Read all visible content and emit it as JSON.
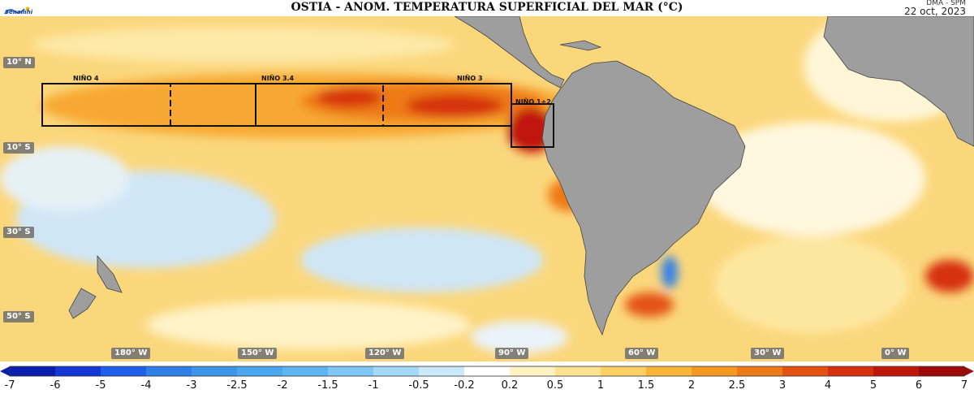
{
  "title": "OSTIA - ANOM. TEMPERATURA SUPERFICIAL DEL MAR (°C)",
  "logo_text": "Senamhi",
  "credit": "DMA - SPM",
  "date": "22 oct, 2023",
  "latitude_labels": [
    "10° N",
    "10° S",
    "30° S",
    "50° S"
  ],
  "longitude_labels": [
    "180° W",
    "150° W",
    "120° W",
    "90° W",
    "60° W",
    "30° W",
    "0° W"
  ],
  "nino_regions": [
    {
      "name": "NIÑO 4",
      "style": "solid"
    },
    {
      "name": "NIÑO 3.4",
      "style": "dashed"
    },
    {
      "name": "NIÑO 3",
      "style": "solid"
    },
    {
      "name": "NIÑO 1+2",
      "style": "solid"
    }
  ],
  "colorbar": {
    "ticks": [
      "-7",
      "-6",
      "-5",
      "-4",
      "-3",
      "-2.5",
      "-2",
      "-1.5",
      "-1",
      "-0.5",
      "-0.2",
      "0.2",
      "0.5",
      "1",
      "1.5",
      "2",
      "2.5",
      "3",
      "4",
      "5",
      "6",
      "7"
    ],
    "colors": [
      "#0a1fb0",
      "#1537d6",
      "#1f5ee8",
      "#2f7fe8",
      "#3d95ea",
      "#4aa6ee",
      "#5db6f2",
      "#7fc8f5",
      "#a3d8f7",
      "#c9e8f9",
      "#ffffff",
      "#fff3c2",
      "#fde391",
      "#fcd063",
      "#f9b53a",
      "#f5981f",
      "#ee7a17",
      "#e45212",
      "#d6300e",
      "#c0170b",
      "#9f0a08"
    ]
  }
}
